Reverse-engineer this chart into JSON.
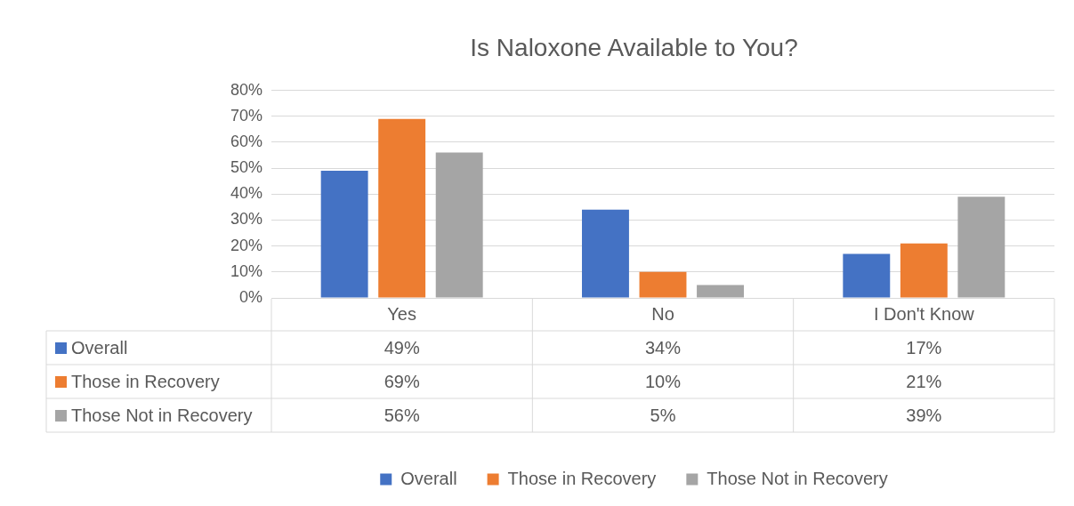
{
  "chart_data": {
    "type": "bar",
    "title": "Is Naloxone Available to You?",
    "categories": [
      "Yes",
      "No",
      "I Don't Know"
    ],
    "series": [
      {
        "name": "Overall",
        "color": "#4472c4",
        "values": [
          49,
          34,
          17
        ],
        "value_labels": [
          "49%",
          "34%",
          "17%"
        ]
      },
      {
        "name": "Those in Recovery",
        "color": "#ed7d31",
        "values": [
          69,
          10,
          21
        ],
        "value_labels": [
          "69%",
          "10%",
          "21%"
        ]
      },
      {
        "name": "Those Not in Recovery",
        "color": "#a5a5a5",
        "values": [
          56,
          5,
          39
        ],
        "value_labels": [
          "56%",
          "5%",
          "39%"
        ]
      }
    ],
    "ylim": [
      0,
      80
    ],
    "yticks": [
      {
        "value": 0,
        "label": "0%"
      },
      {
        "value": 10,
        "label": "10%"
      },
      {
        "value": 20,
        "label": "20%"
      },
      {
        "value": 30,
        "label": "30%"
      },
      {
        "value": 40,
        "label": "40%"
      },
      {
        "value": 50,
        "label": "50%"
      },
      {
        "value": 60,
        "label": "60%"
      },
      {
        "value": 70,
        "label": "70%"
      },
      {
        "value": 80,
        "label": "80%"
      }
    ],
    "grid": "y",
    "legend": "bottom"
  }
}
